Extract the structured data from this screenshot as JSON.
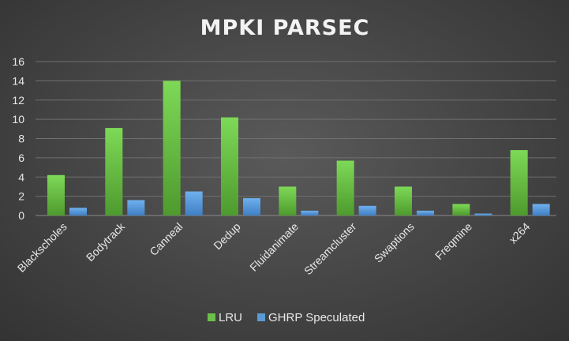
{
  "chart_data": {
    "type": "bar",
    "title": "MPKI PARSEC",
    "xlabel": "",
    "ylabel": "",
    "ylim": [
      0,
      16
    ],
    "yticks": [
      0,
      2,
      4,
      6,
      8,
      10,
      12,
      14,
      16
    ],
    "grid": true,
    "legend_position": "bottom",
    "categories": [
      "Blackscholes",
      "Bodytrack",
      "Canneal",
      "Dedup",
      "Fluidanimate",
      "Streamcluster",
      "Swaptions",
      "Freqmine",
      "x264"
    ],
    "series": [
      {
        "name": "LRU",
        "color": "#6cc04a",
        "values": [
          4.2,
          9.1,
          14.0,
          10.2,
          3.0,
          5.7,
          3.0,
          1.2,
          6.8
        ]
      },
      {
        "name": "GHRP Speculated",
        "color": "#5b9bd5",
        "values": [
          0.8,
          1.6,
          2.5,
          1.8,
          0.5,
          1.0,
          0.5,
          0.2,
          1.2
        ]
      }
    ]
  }
}
